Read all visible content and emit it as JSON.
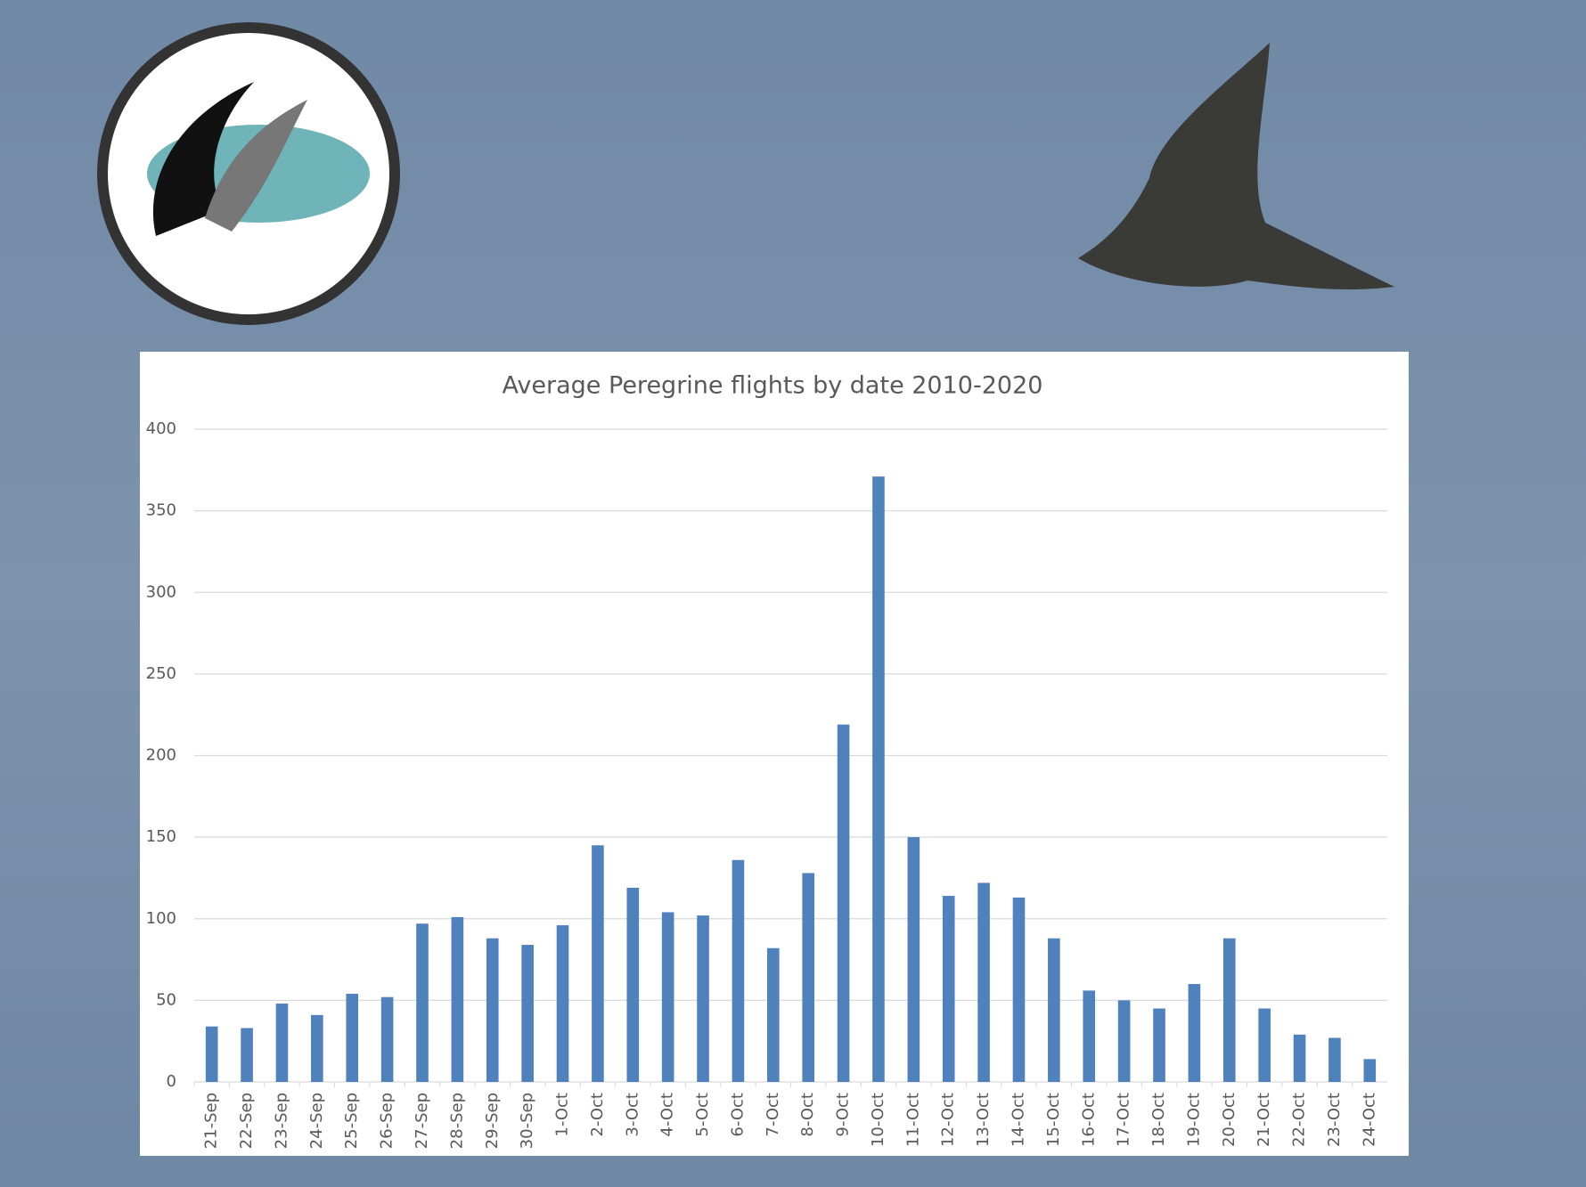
{
  "chart_data": {
    "type": "bar",
    "title": "Average Peregrine flights by date 2010-2020",
    "categories": [
      "21-Sep",
      "22-Sep",
      "23-Sep",
      "24-Sep",
      "25-Sep",
      "26-Sep",
      "27-Sep",
      "28-Sep",
      "29-Sep",
      "30-Sep",
      "1-Oct",
      "2-Oct",
      "3-Oct",
      "4-Oct",
      "5-Oct",
      "6-Oct",
      "7-Oct",
      "8-Oct",
      "9-Oct",
      "10-Oct",
      "11-Oct",
      "12-Oct",
      "13-Oct",
      "14-Oct",
      "15-Oct",
      "16-Oct",
      "17-Oct",
      "18-Oct",
      "19-Oct",
      "20-Oct",
      "21-Oct",
      "22-Oct",
      "23-Oct",
      "24-Oct"
    ],
    "values": [
      34,
      33,
      48,
      41,
      54,
      52,
      97,
      101,
      88,
      84,
      96,
      145,
      119,
      104,
      102,
      136,
      82,
      128,
      219,
      371,
      150,
      114,
      122,
      113,
      88,
      56,
      50,
      45,
      60,
      88,
      45,
      29,
      27,
      14
    ],
    "color": "#4f81bd",
    "ylim": [
      0,
      400
    ],
    "yticks": [
      0,
      50,
      100,
      150,
      200,
      250,
      300,
      350,
      400
    ],
    "grid": true
  }
}
